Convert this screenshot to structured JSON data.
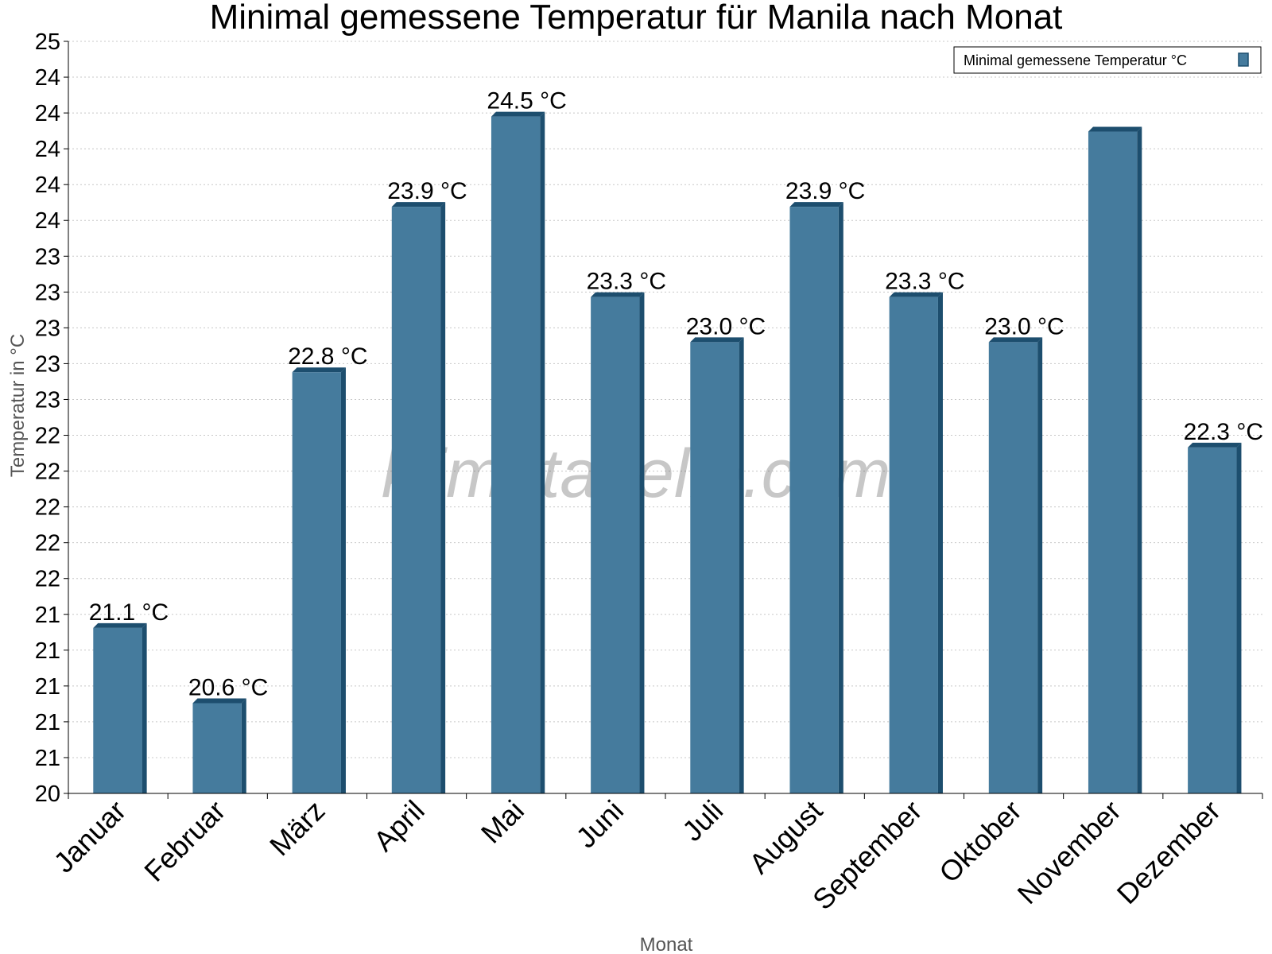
{
  "chart_data": {
    "type": "bar",
    "title": "Minimal gemessene Temperatur für Manila nach Monat",
    "xlabel": "Monat",
    "ylabel": "Temperatur in °C",
    "ylim": [
      20,
      25
    ],
    "y_tick_labels": [
      "25",
      "24",
      "24",
      "24",
      "24",
      "24",
      "23",
      "23",
      "23",
      "23",
      "23",
      "22",
      "22",
      "22",
      "22",
      "22",
      "21",
      "21",
      "21",
      "21",
      "21",
      "20"
    ],
    "categories": [
      "Januar",
      "Februar",
      "März",
      "April",
      "Mai",
      "Juni",
      "Juli",
      "August",
      "September",
      "Oktober",
      "November",
      "Dezember"
    ],
    "values": [
      21.1,
      20.6,
      22.8,
      23.9,
      24.5,
      23.3,
      23.0,
      23.9,
      23.3,
      23.0,
      24.4,
      22.3
    ],
    "data_labels": [
      "21.1 °C",
      "20.6 °C",
      "22.8 °C",
      "23.9 °C",
      "24.5 °C",
      "23.3 °C",
      "23.0 °C",
      "23.9 °C",
      "23.3 °C",
      "23.0 °C",
      "",
      "22.3 °C"
    ],
    "legend": {
      "label": "Minimal gemessene Temperatur °C",
      "position": "top-right"
    },
    "grid": true,
    "bar_color": "#457b9d",
    "bar_side_color": "#1d4e6e",
    "watermark": "klimatabelle.com"
  }
}
